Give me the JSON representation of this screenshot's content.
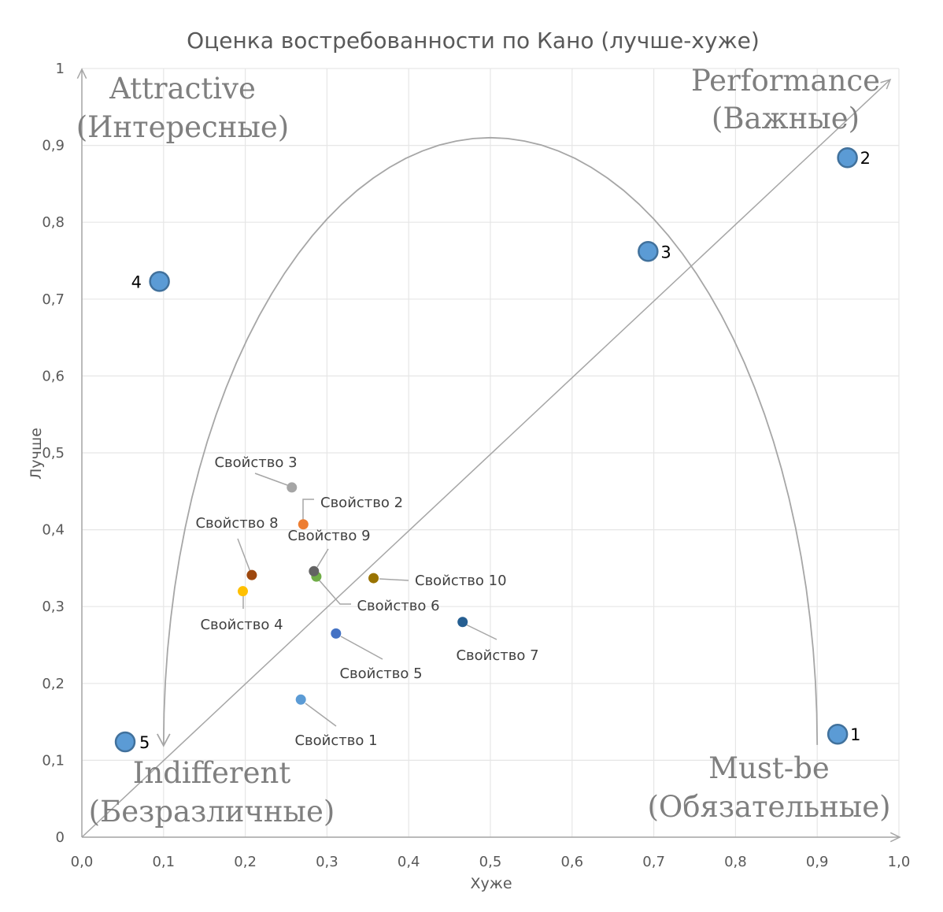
{
  "chart_data": {
    "type": "scatter",
    "title": "Оценка востребованности по Кано (лучше-хуже)",
    "xlabel": "Хуже",
    "ylabel": "Лучше",
    "xlim": [
      0,
      1
    ],
    "ylim": [
      0,
      1
    ],
    "grid": true,
    "x_ticks": [
      "0,0",
      "0,1",
      "0,2",
      "0,3",
      "0,4",
      "0,5",
      "0,6",
      "0,7",
      "0,8",
      "0,9",
      "1,0"
    ],
    "y_ticks": [
      "0",
      "0,1",
      "0,2",
      "0,3",
      "0,4",
      "0,5",
      "0,6",
      "0,7",
      "0,8",
      "0,9",
      "1"
    ],
    "quadrants": [
      {
        "line1": "Attractive",
        "line2": "(Интересные)",
        "position": "top-left"
      },
      {
        "line1": "Performance",
        "line2": "(Важные)",
        "position": "top-right"
      },
      {
        "line1": "Indifferent",
        "line2": "(Безразличные)",
        "position": "bottom-left"
      },
      {
        "line1": "Must-be",
        "line2": "(Обязательные)",
        "position": "bottom-right"
      }
    ],
    "reference_points": [
      {
        "label": "1",
        "x": 0.925,
        "y": 0.134
      },
      {
        "label": "2",
        "x": 0.937,
        "y": 0.884
      },
      {
        "label": "3",
        "x": 0.693,
        "y": 0.762
      },
      {
        "label": "4",
        "x": 0.095,
        "y": 0.723
      },
      {
        "label": "5",
        "x": 0.053,
        "y": 0.124
      }
    ],
    "series": [
      {
        "name": "Свойство 1",
        "x": 0.268,
        "y": 0.179,
        "color": "#5b9bd5"
      },
      {
        "name": "Свойство 2",
        "x": 0.271,
        "y": 0.407,
        "color": "#ed7d31"
      },
      {
        "name": "Свойство 3",
        "x": 0.257,
        "y": 0.455,
        "color": "#a5a5a5"
      },
      {
        "name": "Свойство 4",
        "x": 0.197,
        "y": 0.32,
        "color": "#ffc000"
      },
      {
        "name": "Свойство 5",
        "x": 0.311,
        "y": 0.265,
        "color": "#4472c4"
      },
      {
        "name": "Свойство 6",
        "x": 0.287,
        "y": 0.339,
        "color": "#70ad47"
      },
      {
        "name": "Свойство 7",
        "x": 0.466,
        "y": 0.28,
        "color": "#255e91"
      },
      {
        "name": "Свойство 8",
        "x": 0.208,
        "y": 0.341,
        "color": "#9e480e"
      },
      {
        "name": "Свойство 9",
        "x": 0.284,
        "y": 0.346,
        "color": "#636363"
      },
      {
        "name": "Свойство 10",
        "x": 0.357,
        "y": 0.337,
        "color": "#997300"
      }
    ],
    "colors": {
      "reference_fill": "#5b9bd5",
      "reference_stroke": "#41719c",
      "grid": "#e6e6e6",
      "curve": "#a6a6a6"
    }
  }
}
